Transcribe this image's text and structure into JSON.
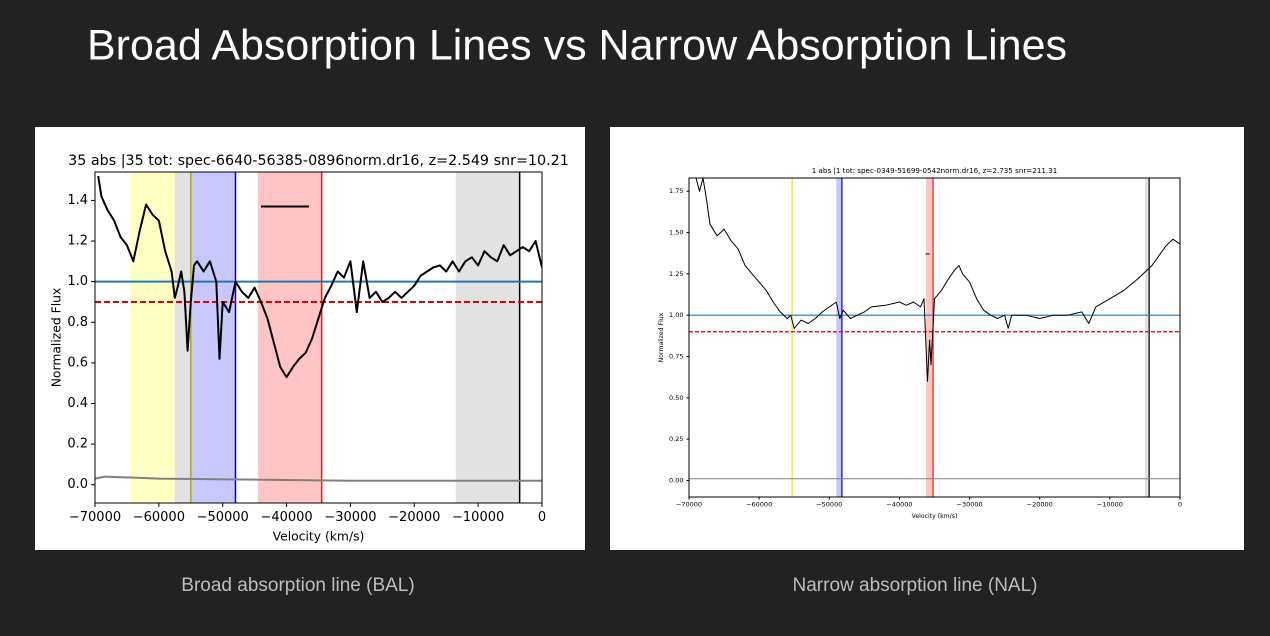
{
  "title": "Broad Absorption Lines vs Narrow Absorption Lines",
  "captions": [
    "Broad absorption line (BAL)",
    "Narrow absorption line (NAL)"
  ],
  "chart_data": [
    {
      "type": "line",
      "title": "35 abs |35 tot: spec-6640-56385-0896norm.dr16, z=2.549 snr=10.21",
      "xlabel": "Velocity (km/s)",
      "ylabel": "Normalized Flux",
      "xlim": [
        -70000,
        0
      ],
      "ylim": [
        -0.09,
        1.54
      ],
      "xticks": [
        {
          "value": -70000,
          "label": "−70000"
        },
        {
          "value": -60000,
          "label": "−60000"
        },
        {
          "value": -50000,
          "label": "−50000"
        },
        {
          "value": -40000,
          "label": "−40000"
        },
        {
          "value": -30000,
          "label": "−30000"
        },
        {
          "value": -20000,
          "label": "−20000"
        },
        {
          "value": -10000,
          "label": "−10000"
        },
        0
      ],
      "yticks": [
        {
          "value": 0,
          "label": "0.0"
        },
        0.2,
        0.4,
        0.6,
        0.8,
        {
          "value": 1,
          "label": "1.0"
        },
        1.2,
        1.4
      ],
      "spans": [
        {
          "x0": -64500,
          "x1": -57500,
          "color": "#ffffc4"
        },
        {
          "x0": -57500,
          "x1": -55000,
          "color": "#e2e2e2"
        },
        {
          "x0": -55000,
          "x1": -48000,
          "color": "#c8c8ff"
        },
        {
          "x0": -44500,
          "x1": -34500,
          "color": "#ffc4c4"
        },
        {
          "x0": -13500,
          "x1": -3500,
          "color": "#e2e2e2"
        }
      ],
      "vlines": [
        {
          "x": -55000,
          "color": "#b5ad00"
        },
        {
          "x": -48000,
          "color": "#0000cc"
        },
        {
          "x": -34500,
          "color": "#dd2222"
        },
        {
          "x": -3500,
          "color": "#000000"
        }
      ],
      "hlines": [
        {
          "y": 1.0,
          "color": "#1f77b4",
          "style": "solid"
        },
        {
          "y": 0.9,
          "color": "#e00000",
          "style": "dashed"
        }
      ],
      "series": [
        {
          "color": "#000000",
          "width": 2,
          "x": [
            -69500,
            -69000,
            -68000,
            -67000,
            -66000,
            -65000,
            -64000,
            -63000,
            -62000,
            -61000,
            -60000,
            -59000,
            -58000,
            -57500,
            -57000,
            -56500,
            -56000,
            -55500,
            -55000,
            -54500,
            -54000,
            -53000,
            -52000,
            -51000,
            -50500,
            -50000,
            -49000,
            -48000,
            -47000,
            -46000,
            -45000,
            -44000,
            -43000,
            -42000,
            -41000,
            -40000,
            -39000,
            -38000,
            -37000,
            -36000,
            -35000,
            -34000,
            -33000,
            -32000,
            -31000,
            -30000,
            -29000,
            -28000,
            -27000,
            -26000,
            -25000,
            -24000,
            -23000,
            -22000,
            -21000,
            -20000,
            -19000,
            -18000,
            -17000,
            -16000,
            -15000,
            -14000,
            -13000,
            -12000,
            -11000,
            -10000,
            -9000,
            -8000,
            -7000,
            -6000,
            -5000,
            -4000,
            -3000,
            -2000,
            -1000,
            0
          ],
          "values": [
            1.52,
            1.42,
            1.35,
            1.3,
            1.22,
            1.18,
            1.1,
            1.25,
            1.38,
            1.33,
            1.3,
            1.15,
            1.05,
            0.92,
            0.98,
            1.05,
            0.95,
            0.66,
            0.9,
            1.08,
            1.1,
            1.05,
            1.1,
            1.0,
            0.62,
            0.9,
            0.85,
            1.0,
            0.95,
            0.92,
            0.97,
            0.9,
            0.82,
            0.7,
            0.58,
            0.53,
            0.58,
            0.62,
            0.65,
            0.72,
            0.82,
            0.92,
            0.98,
            1.05,
            1.02,
            1.1,
            0.85,
            1.1,
            0.92,
            0.95,
            0.9,
            0.92,
            0.95,
            0.92,
            0.95,
            0.98,
            1.03,
            1.05,
            1.07,
            1.08,
            1.05,
            1.1,
            1.05,
            1.1,
            1.12,
            1.08,
            1.15,
            1.12,
            1.1,
            1.18,
            1.13,
            1.15,
            1.17,
            1.15,
            1.2,
            1.07
          ]
        },
        {
          "color": "#808080",
          "width": 2,
          "x": [
            -70000,
            -68500,
            -60000,
            -30000,
            0
          ],
          "values": [
            0.03,
            0.04,
            0.03,
            0.02,
            0.02
          ]
        },
        {
          "color": "#000000",
          "width": 2,
          "x": [
            -44000,
            -36500
          ],
          "values": [
            1.37,
            1.37
          ]
        }
      ]
    },
    {
      "type": "line",
      "title": "1 abs |1 tot: spec-0349-51699-0542norm.dr16, z=2.735 snr=211.31",
      "xlabel": "Velocity (km/s)",
      "ylabel": "Normalized Flux",
      "xlim": [
        -70000,
        0
      ],
      "ylim": [
        -0.1,
        1.83
      ],
      "xticks": [
        {
          "value": -70000,
          "label": "−70000"
        },
        {
          "value": -60000,
          "label": "−60000"
        },
        {
          "value": -50000,
          "label": "−50000"
        },
        {
          "value": -40000,
          "label": "−40000"
        },
        {
          "value": -30000,
          "label": "−30000"
        },
        {
          "value": -20000,
          "label": "−20000"
        },
        {
          "value": -10000,
          "label": "−10000"
        },
        0
      ],
      "yticks": [
        {
          "value": 0,
          "label": "0.00"
        },
        0.25,
        {
          "value": 0.5,
          "label": "0.50"
        },
        0.75,
        {
          "value": 1,
          "label": "1.00"
        },
        1.25,
        {
          "value": 1.5,
          "label": "1.50"
        },
        1.75
      ],
      "spans": [
        {
          "x0": -49000,
          "x1": -48200,
          "color": "#c8c8ff"
        },
        {
          "x0": -36200,
          "x1": -35200,
          "color": "#ffc4c4"
        },
        {
          "x0": -5000,
          "x1": -4400,
          "color": "#e2e2e2"
        }
      ],
      "vlines": [
        {
          "x": -55300,
          "color": "#e8e800"
        },
        {
          "x": -48200,
          "color": "#0000cc"
        },
        {
          "x": -35200,
          "color": "#dd2222"
        },
        {
          "x": -4400,
          "color": "#000000"
        }
      ],
      "hlines": [
        {
          "y": 1.0,
          "color": "#1f77b4",
          "style": "solid"
        },
        {
          "y": 0.9,
          "color": "#e00000",
          "style": "dashed"
        }
      ],
      "series": [
        {
          "color": "#000000",
          "width": 1,
          "x": [
            -69000,
            -68500,
            -68000,
            -67500,
            -67000,
            -66000,
            -65000,
            -64000,
            -63000,
            -62000,
            -61000,
            -60000,
            -59000,
            -58000,
            -57000,
            -56000,
            -55500,
            -55000,
            -54000,
            -53000,
            -52000,
            -51000,
            -50000,
            -49000,
            -48500,
            -48000,
            -47000,
            -46000,
            -45000,
            -44000,
            -42000,
            -40000,
            -39000,
            -38000,
            -37000,
            -36500,
            -36000,
            -35700,
            -35500,
            -35000,
            -34000,
            -33000,
            -32000,
            -31500,
            -31000,
            -30000,
            -29000,
            -28000,
            -27000,
            -26000,
            -25000,
            -24500,
            -24000,
            -22000,
            -20000,
            -18000,
            -16000,
            -14000,
            -13000,
            -12000,
            -10000,
            -8000,
            -6000,
            -4000,
            -2000,
            -1000,
            0
          ],
          "values": [
            1.83,
            1.75,
            1.83,
            1.7,
            1.55,
            1.48,
            1.52,
            1.45,
            1.4,
            1.3,
            1.25,
            1.2,
            1.15,
            1.08,
            1.02,
            0.98,
            1.0,
            0.92,
            0.97,
            0.95,
            0.98,
            1.02,
            1.05,
            1.08,
            0.98,
            1.03,
            0.98,
            1.0,
            1.02,
            1.05,
            1.06,
            1.08,
            1.06,
            1.08,
            1.05,
            1.1,
            0.6,
            0.85,
            0.7,
            1.1,
            1.15,
            1.22,
            1.28,
            1.3,
            1.25,
            1.2,
            1.1,
            1.03,
            1.0,
            0.98,
            1.0,
            0.92,
            1.0,
            1.0,
            0.98,
            1.0,
            1.0,
            1.02,
            0.95,
            1.05,
            1.1,
            1.15,
            1.22,
            1.3,
            1.42,
            1.46,
            1.43
          ]
        },
        {
          "color": "#808080",
          "width": 1,
          "x": [
            -70000,
            -35000,
            0
          ],
          "values": [
            0.01,
            0.01,
            0.01
          ]
        },
        {
          "color": "#000000",
          "width": 1,
          "x": [
            -36300,
            -35700
          ],
          "values": [
            1.37,
            1.37
          ]
        }
      ]
    }
  ]
}
